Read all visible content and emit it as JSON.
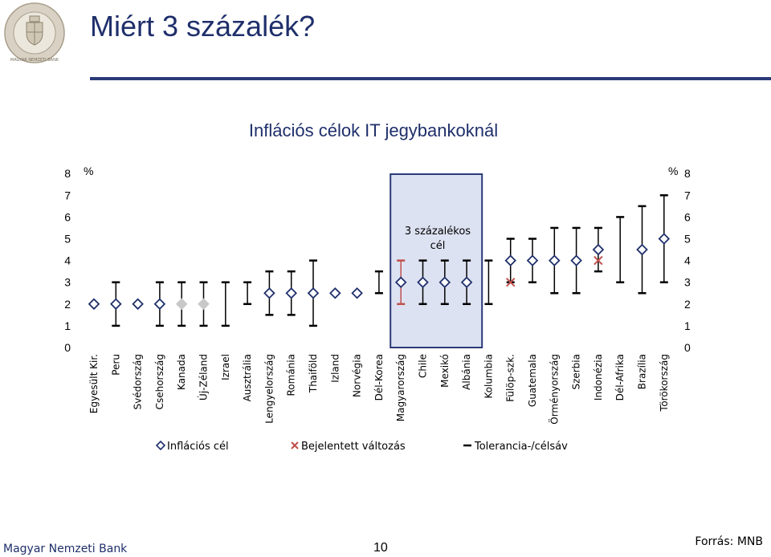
{
  "header": {
    "title": "Miért 3 százalék?",
    "logo_text": "MAGYAR NEMZETI BANK"
  },
  "footer": {
    "left": "Magyar Nemzeti Bank",
    "page": "10",
    "right": "Forrás: MNB"
  },
  "colors": {
    "title": "#1f2f6b",
    "highlight_fill": "#dde2f2",
    "highlight_border": "#2b3a78",
    "marker": "#1f2f6b",
    "cross": "#c0504d",
    "error_bar": "#000000",
    "error_bar_highlight": "#c0504d",
    "grey_marker": "#c8c8c8"
  },
  "chart_data": {
    "type": "scatter",
    "title": "Inflációs célok IT jegybankoknál",
    "ylabel_left": "%",
    "ylabel_right": "%",
    "ylim": [
      0,
      8
    ],
    "yticks": [
      "0",
      "1",
      "2",
      "3",
      "4",
      "5",
      "6",
      "7",
      "8"
    ],
    "annotation": [
      "3 százalékos",
      "cél"
    ],
    "highlight_category": "Magyarország",
    "legend": {
      "target": "Inflációs cél",
      "change": "Bejelentett változás",
      "band": "Tolerancia-/célsáv"
    },
    "categories": [
      "Egyesült Kir.",
      "Peru",
      "Svédország",
      "Csehország",
      "Kanada",
      "Új-Zéland",
      "Izrael",
      "Ausztrália",
      "Lengyelország",
      "Románia",
      "Thaiföld",
      "Izland",
      "Norvégia",
      "Dél-Korea",
      "Magyarország",
      "Chile",
      "Mexikó",
      "Albánia",
      "Kolumbia",
      "Fülöp-szk.",
      "Guatemala",
      "Örményország",
      "Szerbia",
      "Indonézia",
      "Dél-Afrika",
      "Brazília",
      "Törökország"
    ],
    "target": [
      2,
      2,
      2,
      2,
      2,
      2,
      null,
      null,
      2.5,
      2.5,
      2.5,
      2.5,
      2.5,
      null,
      3,
      3,
      3,
      3,
      null,
      4,
      4,
      4,
      4,
      4.5,
      null,
      4.5,
      5
    ],
    "target_grey": [
      false,
      false,
      false,
      false,
      true,
      true,
      false,
      false,
      false,
      false,
      false,
      false,
      false,
      false,
      false,
      false,
      false,
      false,
      false,
      false,
      false,
      false,
      false,
      false,
      false,
      false,
      false
    ],
    "band_low": [
      null,
      1,
      null,
      1,
      1,
      1,
      1,
      2,
      1.5,
      1.5,
      1,
      null,
      null,
      2.5,
      2,
      2,
      2,
      2,
      2,
      3,
      3,
      2.5,
      2.5,
      3.5,
      3,
      2.5,
      3
    ],
    "band_high": [
      null,
      3,
      null,
      3,
      3,
      3,
      3,
      3,
      3.5,
      3.5,
      4,
      null,
      null,
      3.5,
      4,
      4,
      4,
      4,
      4,
      5,
      5,
      5.5,
      5.5,
      5.5,
      6,
      6.5,
      7
    ],
    "announced_change": [
      null,
      null,
      null,
      null,
      null,
      null,
      null,
      null,
      null,
      null,
      null,
      null,
      null,
      null,
      null,
      null,
      null,
      null,
      null,
      3,
      null,
      null,
      null,
      4,
      null,
      null,
      null
    ]
  }
}
